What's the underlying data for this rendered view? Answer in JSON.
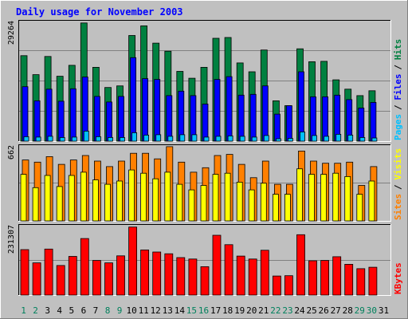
{
  "chart_data": [
    {
      "type": "bar",
      "title": "Daily usage for November 2003",
      "categories": [
        "1",
        "2",
        "3",
        "4",
        "5",
        "6",
        "7",
        "8",
        "9",
        "10",
        "11",
        "12",
        "13",
        "14",
        "15",
        "16",
        "17",
        "18",
        "19",
        "20",
        "21",
        "22",
        "23",
        "24",
        "25",
        "26",
        "27",
        "28",
        "29",
        "30",
        "31"
      ],
      "weekend_days": [
        "1",
        "2",
        "8",
        "9",
        "15",
        "16",
        "22",
        "23",
        "29",
        "30"
      ],
      "y_axis_max_label": "29264",
      "ylim": [
        0,
        29264
      ],
      "grid": true,
      "series": [
        {
          "name": "Hits",
          "color": "#008040",
          "values": [
            21200,
            16500,
            21000,
            16100,
            18800,
            29300,
            18300,
            13300,
            13700,
            26200,
            28600,
            24300,
            22300,
            17300,
            15600,
            18300,
            25500,
            25700,
            19400,
            17200,
            22600,
            10000,
            8800,
            22900,
            19700,
            19800,
            15200,
            12900,
            11300,
            12500,
            0
          ]
        },
        {
          "name": "Files",
          "color": "#0000ff",
          "values": [
            13500,
            10000,
            12900,
            9900,
            13000,
            15900,
            11100,
            9700,
            11100,
            20700,
            15500,
            15300,
            11300,
            12400,
            11300,
            9200,
            15300,
            16000,
            11400,
            11600,
            13700,
            6700,
            8800,
            17200,
            11000,
            11000,
            11400,
            10300,
            8200,
            9600,
            0
          ]
        },
        {
          "name": "Pages",
          "color": "#00c0ff",
          "values": [
            1100,
            1000,
            1200,
            900,
            1000,
            2500,
            1100,
            900,
            900,
            2100,
            1500,
            1600,
            1200,
            1600,
            1600,
            1000,
            1200,
            1300,
            1200,
            1000,
            1400,
            600,
            700,
            2300,
            1400,
            1200,
            1700,
            1500,
            900,
            800,
            0
          ]
        }
      ],
      "legend": [
        "Pages",
        "Files",
        "Hits"
      ]
    },
    {
      "type": "bar",
      "categories": [
        "1",
        "2",
        "3",
        "4",
        "5",
        "6",
        "7",
        "8",
        "9",
        "10",
        "11",
        "12",
        "13",
        "14",
        "15",
        "16",
        "17",
        "18",
        "19",
        "20",
        "21",
        "22",
        "23",
        "24",
        "25",
        "26",
        "27",
        "28",
        "29",
        "30",
        "31"
      ],
      "y_axis_max_label": "662",
      "ylim": [
        0,
        662
      ],
      "grid": true,
      "series": [
        {
          "name": "Sites",
          "color": "#ff8000",
          "values": [
            550,
            530,
            580,
            510,
            550,
            590,
            540,
            490,
            540,
            610,
            610,
            560,
            670,
            530,
            440,
            480,
            590,
            600,
            510,
            390,
            540,
            330,
            330,
            630,
            540,
            520,
            520,
            530,
            320,
            490,
            0
          ]
        },
        {
          "name": "Visits",
          "color": "#ffff00",
          "values": [
            420,
            300,
            410,
            310,
            410,
            440,
            370,
            330,
            360,
            460,
            430,
            380,
            440,
            330,
            280,
            320,
            420,
            430,
            350,
            280,
            340,
            240,
            240,
            470,
            420,
            420,
            430,
            400,
            240,
            360,
            0
          ]
        }
      ],
      "legend": [
        "Sites",
        "Visits"
      ]
    },
    {
      "type": "bar",
      "categories": [
        "1",
        "2",
        "3",
        "4",
        "5",
        "6",
        "7",
        "8",
        "9",
        "10",
        "11",
        "12",
        "13",
        "14",
        "15",
        "16",
        "17",
        "18",
        "19",
        "20",
        "21",
        "22",
        "23",
        "24",
        "25",
        "26",
        "27",
        "28",
        "29",
        "30",
        "31"
      ],
      "y_axis_max_label": "231307",
      "ylim": [
        0,
        231307
      ],
      "grid": true,
      "series": [
        {
          "name": "KBytes",
          "color": "#ff0000",
          "values": [
            155000,
            110000,
            157000,
            101000,
            132000,
            193000,
            118000,
            110000,
            134000,
            232000,
            154000,
            147000,
            141000,
            128000,
            123000,
            97000,
            204000,
            172000,
            133000,
            123000,
            153000,
            65000,
            66000,
            206000,
            117000,
            118000,
            131000,
            105000,
            90000,
            95000,
            0
          ]
        }
      ],
      "legend": [
        "KBytes"
      ]
    }
  ]
}
